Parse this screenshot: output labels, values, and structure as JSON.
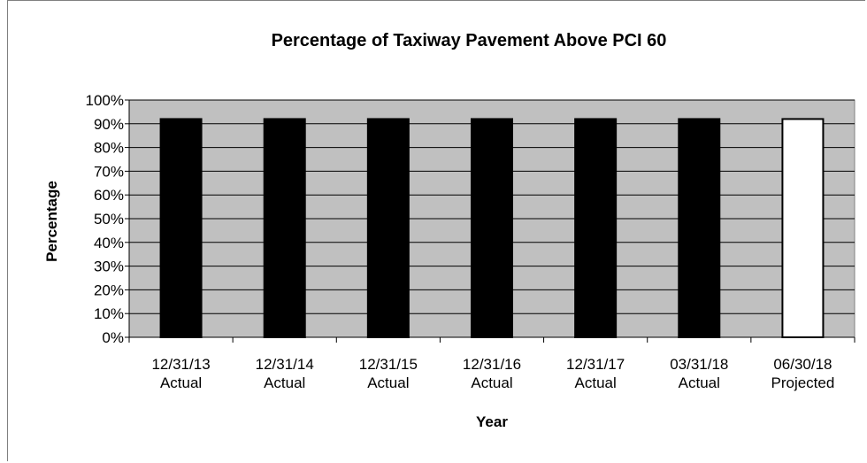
{
  "chart_data": {
    "type": "bar",
    "title": "Percentage of Taxiway Pavement Above PCI 60",
    "xlabel": "Year",
    "ylabel": "Percentage",
    "ylim": [
      0,
      100
    ],
    "y_ticks": [
      "0%",
      "10%",
      "20%",
      "30%",
      "40%",
      "50%",
      "60%",
      "70%",
      "80%",
      "90%",
      "100%"
    ],
    "categories": [
      [
        "12/31/13",
        "Actual"
      ],
      [
        "12/31/14",
        "Actual"
      ],
      [
        "12/31/15",
        "Actual"
      ],
      [
        "12/31/16",
        "Actual"
      ],
      [
        "12/31/17",
        "Actual"
      ],
      [
        "03/31/18",
        "Actual"
      ],
      [
        "06/30/18",
        "Projected"
      ]
    ],
    "values": [
      92,
      92,
      92,
      92,
      92,
      92,
      92
    ],
    "bar_fill": [
      "#000000",
      "#000000",
      "#000000",
      "#000000",
      "#000000",
      "#000000",
      "#ffffff"
    ],
    "plot_background": "#c0c0c0",
    "grid": true,
    "legend": "none"
  }
}
